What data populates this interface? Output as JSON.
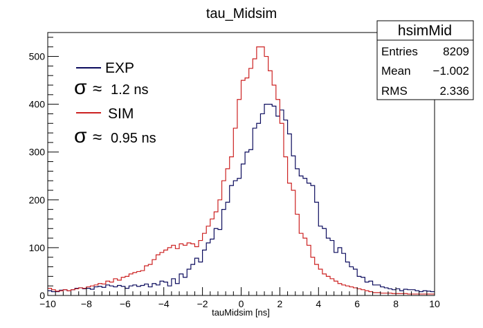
{
  "chart_data": {
    "type": "line",
    "title": "tau_Midsim",
    "xlabel": "tauMidsim [ns]",
    "ylabel": "",
    "xlim": [
      -10,
      10
    ],
    "ylim": [
      0,
      550
    ],
    "x_ticks": [
      "−10",
      "−8",
      "−6",
      "−4",
      "−2",
      "0",
      "2",
      "4",
      "6",
      "8",
      "10"
    ],
    "y_ticks": [
      "0",
      "100",
      "200",
      "300",
      "400",
      "500"
    ],
    "grid": false,
    "bin_width": 0.2,
    "series": [
      {
        "name": "EXP",
        "color": "#0a0a5c",
        "values": [
          10,
          8,
          8,
          11,
          12,
          10,
          12,
          15,
          16,
          14,
          15,
          13,
          18,
          19,
          17,
          22,
          20,
          18,
          21,
          19,
          15,
          20,
          22,
          19,
          21,
          24,
          18,
          25,
          22,
          30,
          28,
          20,
          35,
          25,
          45,
          38,
          55,
          65,
          78,
          70,
          95,
          110,
          118,
          140,
          138,
          180,
          195,
          230,
          240,
          245,
          275,
          300,
          305,
          350,
          360,
          380,
          400,
          400,
          396,
          375,
          388,
          367,
          338,
          292,
          265,
          250,
          245,
          235,
          230,
          195,
          145,
          140,
          120,
          115,
          90,
          100,
          88,
          70,
          60,
          55,
          40,
          38,
          28,
          30,
          22,
          22,
          18,
          16,
          14,
          12,
          14,
          10,
          13,
          12,
          12,
          10,
          8,
          10,
          9,
          8
        ]
      },
      {
        "name": "SIM",
        "color": "#cc2020",
        "values": [
          15,
          12,
          9,
          10,
          12,
          10,
          12,
          14,
          16,
          15,
          18,
          20,
          22,
          25,
          24,
          30,
          28,
          35,
          32,
          38,
          40,
          45,
          48,
          50,
          52,
          62,
          65,
          75,
          85,
          90,
          95,
          100,
          105,
          98,
          108,
          105,
          110,
          108,
          102,
          115,
          130,
          145,
          160,
          175,
          200,
          240,
          265,
          290,
          350,
          410,
          450,
          455,
          475,
          495,
          520,
          520,
          500,
          470,
          440,
          410,
          360,
          290,
          235,
          220,
          170,
          130,
          120,
          105,
          80,
          65,
          55,
          45,
          40,
          35,
          30,
          25,
          22,
          20,
          18,
          16,
          14,
          12,
          10,
          8,
          6,
          6,
          5,
          5,
          5,
          4,
          4,
          4,
          4,
          3,
          3,
          3,
          3,
          3,
          3,
          3
        ]
      }
    ],
    "legend": [
      {
        "label": "EXP",
        "sigma": "σ",
        "approx": "≈",
        "value": "1.2 ns"
      },
      {
        "label": "SIM",
        "sigma": "σ",
        "approx": "≈",
        "value": "0.95 ns"
      }
    ],
    "stats": {
      "name": "hsimMid",
      "rows": [
        {
          "label": "Entries",
          "value": "8209"
        },
        {
          "label": "Mean",
          "value": "−1.002"
        },
        {
          "label": "RMS",
          "value": "2.336"
        }
      ]
    }
  }
}
